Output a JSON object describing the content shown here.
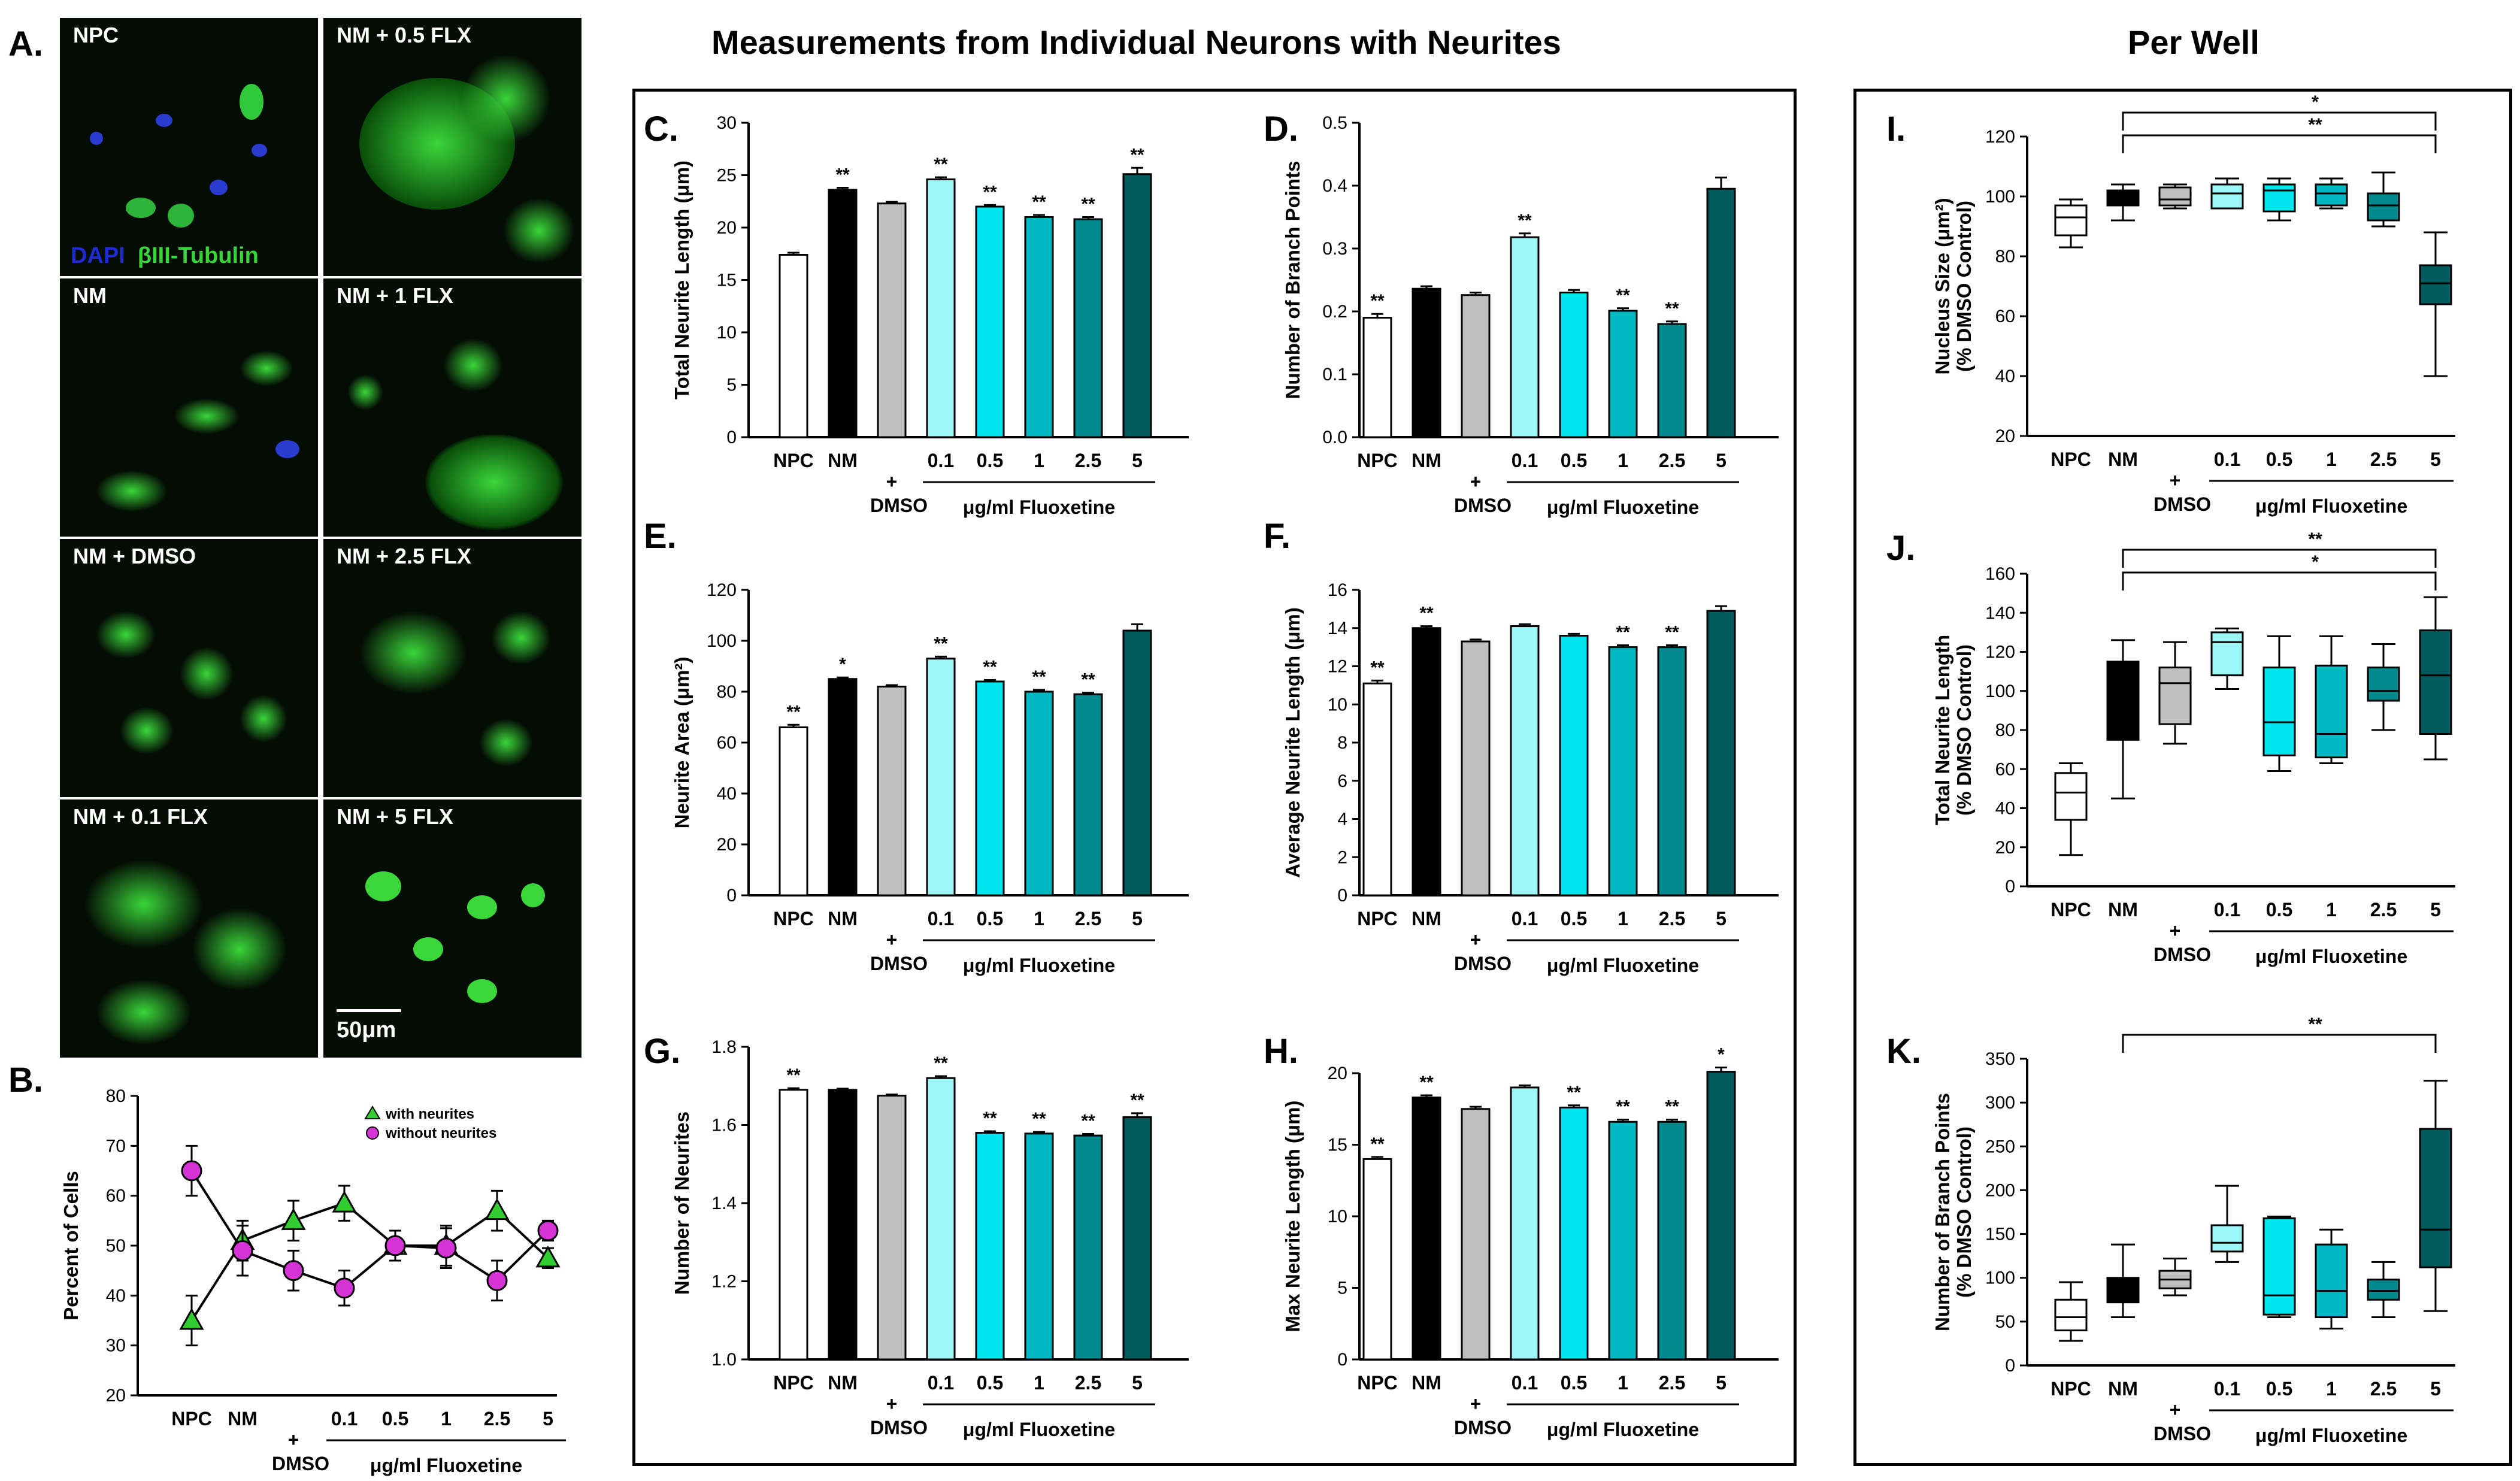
{
  "headings": {
    "panel_a": "A.",
    "panel_b": "B.",
    "individual": "Measurements from Individual Neurons with Neurites",
    "per_well": "Per Well"
  },
  "micrographs": {
    "tiles": [
      "NPC",
      "NM + 0.5 FLX",
      "NM",
      "NM + 1 FLX",
      "NM + DMSO",
      "NM + 2.5 FLX",
      "NM + 0.1 FLX",
      "NM + 5 FLX"
    ],
    "stain_blue": "DAPI",
    "stain_green": "βIII-Tubulin",
    "scale_bar": "50μm"
  },
  "colors": {
    "npc": "#ffffff",
    "nm": "#000000",
    "dmso": "#c0c0c0",
    "flx01": "#9ef7f7",
    "flx05": "#00e6ee",
    "flx1": "#00b8c2",
    "flx25": "#008a8e",
    "flx5": "#005c5c",
    "triangle": "#33cc33",
    "circle": "#d633d6"
  },
  "x_axis": {
    "categories": [
      "NPC",
      "NM",
      "+",
      "0.1",
      "0.5",
      "1",
      "2.5",
      "5"
    ],
    "dmso": "DMSO",
    "drug": "μg/ml Fluoxetine"
  },
  "chart_data": [
    {
      "panel": "B.",
      "type": "line",
      "ylabel": "Percent of Cells",
      "ylim": [
        20,
        80
      ],
      "yticks": [
        "20",
        "30",
        "40",
        "50",
        "60",
        "70",
        "80"
      ],
      "legend_position": "top-right",
      "series": [
        {
          "name": "with neurites",
          "values": [
            35,
            51,
            55,
            58.5,
            50,
            50,
            57,
            47.5
          ],
          "errors": [
            5,
            4,
            4,
            3.5,
            3,
            4,
            4,
            2
          ]
        },
        {
          "name": "without neurites",
          "values": [
            65,
            49,
            45,
            41.5,
            50,
            49.5,
            43,
            53
          ],
          "errors": [
            5,
            5,
            4,
            3.5,
            3,
            4,
            4,
            2
          ]
        }
      ]
    },
    {
      "panel": "C.",
      "type": "bar",
      "ylabel": "Total Neurite Length (μm)",
      "ylim": [
        0,
        30
      ],
      "yticks": [
        "0",
        "5",
        "10",
        "15",
        "20",
        "25",
        "30"
      ],
      "values": [
        17.4,
        23.6,
        22.3,
        24.6,
        22.0,
        21.0,
        20.8,
        25.1
      ],
      "errors": [
        0.2,
        0.2,
        0.15,
        0.2,
        0.15,
        0.2,
        0.2,
        0.6
      ],
      "marks": [
        "",
        "**",
        "",
        "**",
        "**",
        "**",
        "**",
        "**"
      ]
    },
    {
      "panel": "D.",
      "type": "bar",
      "ylabel": "Number of Branch Points",
      "ylim": [
        0,
        0.5
      ],
      "yticks": [
        "0.0",
        "0.1",
        "0.2",
        "0.3",
        "0.4",
        "0.5"
      ],
      "values": [
        0.19,
        0.236,
        0.226,
        0.318,
        0.23,
        0.201,
        0.18,
        0.395
      ],
      "errors": [
        0.006,
        0.004,
        0.004,
        0.006,
        0.004,
        0.004,
        0.004,
        0.018
      ],
      "marks": [
        "**",
        "",
        "",
        "**",
        "",
        "**",
        "**",
        ""
      ]
    },
    {
      "panel": "E.",
      "type": "bar",
      "ylabel": "Neurite Area (μm²)",
      "ylim": [
        0,
        120
      ],
      "yticks": [
        "0",
        "20",
        "40",
        "60",
        "80",
        "100",
        "120"
      ],
      "values": [
        66,
        85,
        82,
        93,
        84,
        80,
        79,
        104
      ],
      "errors": [
        1,
        0.6,
        0.6,
        0.8,
        0.6,
        0.7,
        0.6,
        2.5
      ],
      "marks": [
        "**",
        "*",
        "",
        "**",
        "**",
        "**",
        "**",
        ""
      ]
    },
    {
      "panel": "F.",
      "type": "bar",
      "ylabel": "Average Neurite Length (μm)",
      "ylim": [
        0,
        16
      ],
      "yticks": [
        "0",
        "2",
        "4",
        "6",
        "8",
        "10",
        "12",
        "14",
        "16"
      ],
      "values": [
        11.1,
        14.0,
        13.3,
        14.1,
        13.6,
        13.0,
        13.0,
        14.9
      ],
      "errors": [
        0.15,
        0.1,
        0.1,
        0.1,
        0.1,
        0.1,
        0.1,
        0.25
      ],
      "marks": [
        "**",
        "**",
        "",
        "",
        "",
        "**",
        "**",
        ""
      ]
    },
    {
      "panel": "G.",
      "type": "bar",
      "ylabel": "Number of Neurites",
      "ylim": [
        1.0,
        1.8
      ],
      "base": 1.0,
      "yticks": [
        "1.0",
        "1.2",
        "1.4",
        "1.6",
        "1.8"
      ],
      "values": [
        1.69,
        1.69,
        1.675,
        1.72,
        1.58,
        1.578,
        1.573,
        1.62
      ],
      "errors": [
        0.004,
        0.003,
        0.003,
        0.005,
        0.004,
        0.004,
        0.004,
        0.01
      ],
      "marks": [
        "**",
        "",
        "",
        "**",
        "**",
        "**",
        "**",
        "**"
      ]
    },
    {
      "panel": "H.",
      "type": "bar",
      "ylabel": "Max Neurite Length (μm)",
      "ylim": [
        0,
        20
      ],
      "yticks": [
        "0",
        "5",
        "10",
        "15",
        "20"
      ],
      "values": [
        14.0,
        18.3,
        17.5,
        19.0,
        17.6,
        16.6,
        16.6,
        20.1
      ],
      "errors": [
        0.15,
        0.15,
        0.15,
        0.15,
        0.15,
        0.15,
        0.15,
        0.3
      ],
      "marks": [
        "**",
        "**",
        "",
        "",
        "**",
        "**",
        "**",
        "*"
      ]
    },
    {
      "panel": "I.",
      "type": "box",
      "ylabel": "Nucleus Size (μm²) (% DMSO Control)",
      "ylim": [
        20,
        120
      ],
      "yticks": [
        "20",
        "40",
        "60",
        "80",
        "100",
        "120"
      ],
      "boxes": [
        {
          "min": 83,
          "q1": 87,
          "median": 93,
          "q3": 97,
          "max": 99
        },
        {
          "min": 92,
          "q1": 97,
          "median": 100,
          "q3": 102,
          "max": 104
        },
        {
          "min": 96,
          "q1": 97,
          "median": 99,
          "q3": 103,
          "max": 104
        },
        {
          "min": 96,
          "q1": 96,
          "median": 101,
          "q3": 104,
          "max": 106
        },
        {
          "min": 92,
          "q1": 95,
          "median": 102,
          "q3": 104,
          "max": 106
        },
        {
          "min": 96,
          "q1": 97,
          "median": 101,
          "q3": 104,
          "max": 106
        },
        {
          "min": 90,
          "q1": 92,
          "median": 97,
          "q3": 101,
          "max": 108
        },
        {
          "min": 40,
          "q1": 64,
          "median": 71,
          "q3": 77,
          "max": 88
        }
      ],
      "marks": [
        "*",
        "**"
      ]
    },
    {
      "panel": "J.",
      "type": "box",
      "ylabel": "Total Neurite Length (% DMSO Control)",
      "ylim": [
        0,
        160
      ],
      "yticks": [
        "0",
        "20",
        "40",
        "60",
        "80",
        "100",
        "120",
        "140",
        "160"
      ],
      "boxes": [
        {
          "min": 16,
          "q1": 34,
          "median": 48,
          "q3": 58,
          "max": 63
        },
        {
          "min": 45,
          "q1": 75,
          "median": 92,
          "q3": 115,
          "max": 126
        },
        {
          "min": 73,
          "q1": 83,
          "median": 104,
          "q3": 112,
          "max": 125
        },
        {
          "min": 101,
          "q1": 108,
          "median": 125,
          "q3": 130,
          "max": 132
        },
        {
          "min": 59,
          "q1": 67,
          "median": 84,
          "q3": 112,
          "max": 128
        },
        {
          "min": 63,
          "q1": 66,
          "median": 78,
          "q3": 113,
          "max": 128
        },
        {
          "min": 80,
          "q1": 95,
          "median": 100,
          "q3": 112,
          "max": 124
        },
        {
          "min": 65,
          "q1": 78,
          "median": 108,
          "q3": 131,
          "max": 148
        }
      ],
      "marks": [
        "**",
        "*"
      ]
    },
    {
      "panel": "K.",
      "type": "box",
      "ylabel": "Number of Branch Points (% DMSO Control)",
      "ylim": [
        0,
        350
      ],
      "yticks": [
        "0",
        "50",
        "100",
        "150",
        "200",
        "250",
        "300",
        "350"
      ],
      "boxes": [
        {
          "min": 28,
          "q1": 40,
          "median": 55,
          "q3": 75,
          "max": 95
        },
        {
          "min": 55,
          "q1": 72,
          "median": 90,
          "q3": 100,
          "max": 138
        },
        {
          "min": 80,
          "q1": 88,
          "median": 98,
          "q3": 108,
          "max": 122
        },
        {
          "min": 118,
          "q1": 130,
          "median": 140,
          "q3": 160,
          "max": 205
        },
        {
          "min": 55,
          "q1": 58,
          "median": 80,
          "q3": 168,
          "max": 170
        },
        {
          "min": 42,
          "q1": 55,
          "median": 85,
          "q3": 138,
          "max": 155
        },
        {
          "min": 55,
          "q1": 75,
          "median": 85,
          "q3": 98,
          "max": 118
        },
        {
          "min": 62,
          "q1": 112,
          "median": 155,
          "q3": 270,
          "max": 325
        }
      ],
      "marks": [
        "**"
      ]
    }
  ]
}
